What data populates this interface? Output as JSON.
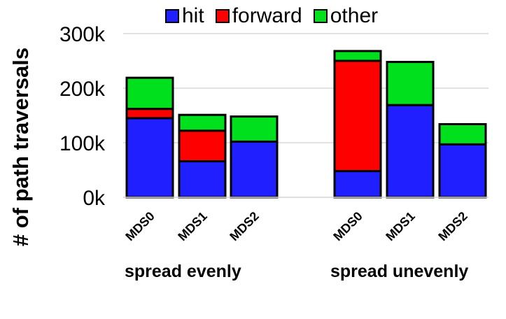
{
  "chart_data": {
    "type": "bar",
    "stacked": true,
    "ylabel": "# of path traversals",
    "ylim": [
      0,
      300000
    ],
    "yticks": [
      {
        "value": 0,
        "label": "0k"
      },
      {
        "value": 100000,
        "label": "100k"
      },
      {
        "value": 200000,
        "label": "200k"
      },
      {
        "value": 300000,
        "label": "300k"
      }
    ],
    "grid": true,
    "legend_position": "top",
    "groups": [
      {
        "label": "spread evenly",
        "categories": [
          "MDS0",
          "MDS1",
          "MDS2"
        ]
      },
      {
        "label": "spread unevenly",
        "categories": [
          "MDS0",
          "MDS1",
          "MDS2"
        ]
      }
    ],
    "series": [
      {
        "name": "hit",
        "color": "#1f1fff",
        "values": [
          145000,
          66000,
          102000,
          48000,
          169000,
          97000
        ]
      },
      {
        "name": "forward",
        "color": "#ff0000",
        "values": [
          17000,
          56000,
          0,
          202000,
          0,
          0
        ]
      },
      {
        "name": "other",
        "color": "#00e01c",
        "values": [
          57000,
          29000,
          46000,
          18000,
          79000,
          37000
        ]
      }
    ]
  }
}
